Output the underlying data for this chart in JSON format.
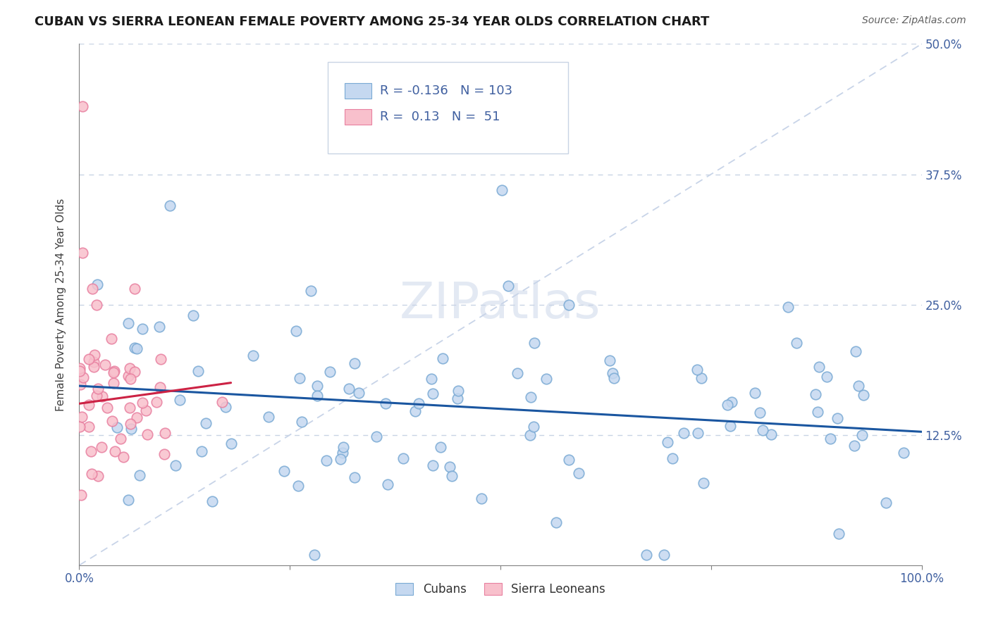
{
  "title": "CUBAN VS SIERRA LEONEAN FEMALE POVERTY AMONG 25-34 YEAR OLDS CORRELATION CHART",
  "source": "Source: ZipAtlas.com",
  "ylabel": "Female Poverty Among 25-34 Year Olds",
  "xlim": [
    0,
    1.0
  ],
  "ylim": [
    0,
    0.5
  ],
  "yticks": [
    0.0,
    0.125,
    0.25,
    0.375,
    0.5
  ],
  "ytick_labels": [
    "",
    "12.5%",
    "25.0%",
    "37.5%",
    "50.0%"
  ],
  "xticks": [
    0.0,
    0.25,
    0.5,
    0.75,
    1.0
  ],
  "xtick_labels": [
    "0.0%",
    "",
    "",
    "",
    "100.0%"
  ],
  "cubans_R": -0.136,
  "cubans_N": 103,
  "sierraleoneans_R": 0.13,
  "sierraleoneans_N": 51,
  "blue_fill": "#c5d8f0",
  "blue_edge": "#7aaad4",
  "pink_fill": "#f8c0cc",
  "pink_edge": "#e880a0",
  "blue_line_color": "#1a56a0",
  "pink_line_color": "#cc2244",
  "dash_line_color": "#c8d4e8",
  "background_color": "#ffffff",
  "grid_color": "#c8d4e4",
  "watermark_color": "#c8d4e8",
  "title_color": "#1a1a1a",
  "label_color": "#4060a0",
  "axis_color": "#808080",
  "legend_box_color": "#c8d4e4",
  "blue_trend_start_y": 0.172,
  "blue_trend_end_y": 0.128,
  "pink_trend_start_y": 0.155,
  "pink_trend_end_y": 0.175,
  "pink_trend_end_x": 0.18
}
